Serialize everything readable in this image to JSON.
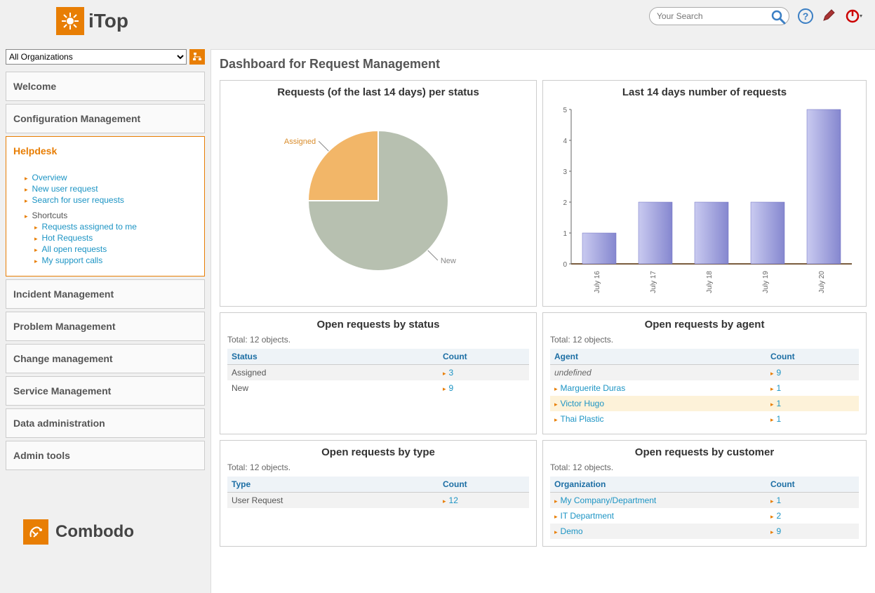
{
  "app_name": "iTop",
  "search": {
    "placeholder": "Your Search"
  },
  "footer_brand": "Combodo",
  "org_select_label": "All Organizations",
  "sidebar": {
    "items": [
      "Welcome",
      "Configuration Management",
      "Helpdesk",
      "Incident Management",
      "Problem Management",
      "Change management",
      "Service Management",
      "Data administration",
      "Admin tools"
    ],
    "active_index": 2,
    "helpdesk_sub": {
      "links": [
        "Overview",
        "New user request",
        "Search for user requests"
      ],
      "shortcuts_hdr": "Shortcuts",
      "shortcuts": [
        "Requests assigned to me",
        "Hot Requests",
        "All open requests",
        "My support calls"
      ]
    }
  },
  "page_title": "Dashboard for Request Management",
  "colors": {
    "brand_orange": "#e87e04",
    "link_blue": "#1c94c4",
    "header_blue": "#1c6ea4",
    "pie_new": "#b7c0b0",
    "pie_assigned": "#f2b668",
    "bar_fill_light": "#c9caf0",
    "bar_fill_dark": "#8587cf",
    "axis": "#666666",
    "highlight_row": "#fdf2d9"
  },
  "pie_chart": {
    "title": "Requests (of the last 14 days) per status",
    "type": "pie",
    "slices": [
      {
        "label": "New",
        "value": 9,
        "color": "#b7c0b0"
      },
      {
        "label": "Assigned",
        "value": 3,
        "color": "#f2b668"
      }
    ],
    "label_fontsize": 11
  },
  "bar_chart": {
    "title": "Last 14 days number of requests",
    "type": "bar",
    "categories": [
      "July 16",
      "July 17",
      "July 18",
      "July 19",
      "July 20"
    ],
    "values": [
      1,
      2,
      2,
      2,
      5
    ],
    "ylim": [
      0,
      5
    ],
    "ytick_step": 1,
    "bar_color_light": "#c9caf0",
    "bar_color_dark": "#8587cf",
    "axis_color": "#666666",
    "label_fontsize": 10
  },
  "tables": {
    "by_status": {
      "title": "Open requests by status",
      "total": "Total: 12 objects.",
      "columns": [
        "Status",
        "Count"
      ],
      "rows": [
        {
          "c0": "Assigned",
          "c1": "3",
          "style": "plain"
        },
        {
          "c0": "New",
          "c1": "9",
          "style": "plain"
        }
      ]
    },
    "by_agent": {
      "title": "Open requests by agent",
      "total": "Total: 12 objects.",
      "columns": [
        "Agent",
        "Count"
      ],
      "rows": [
        {
          "c0": "undefined",
          "c1": "9",
          "style": "italic"
        },
        {
          "c0": "Marguerite Duras",
          "c1": "1",
          "style": "link"
        },
        {
          "c0": "Victor Hugo",
          "c1": "1",
          "style": "link_hl"
        },
        {
          "c0": "Thai Plastic",
          "c1": "1",
          "style": "link"
        }
      ]
    },
    "by_type": {
      "title": "Open requests by type",
      "total": "Total: 12 objects.",
      "columns": [
        "Type",
        "Count"
      ],
      "rows": [
        {
          "c0": "User Request",
          "c1": "12",
          "style": "plain"
        }
      ]
    },
    "by_customer": {
      "title": "Open requests by customer",
      "total": "Total: 12 objects.",
      "columns": [
        "Organization",
        "Count"
      ],
      "rows": [
        {
          "c0": "My Company/Department",
          "c1": "1",
          "style": "link"
        },
        {
          "c0": "IT Department",
          "c1": "2",
          "style": "link"
        },
        {
          "c0": "Demo",
          "c1": "9",
          "style": "link"
        }
      ]
    }
  }
}
